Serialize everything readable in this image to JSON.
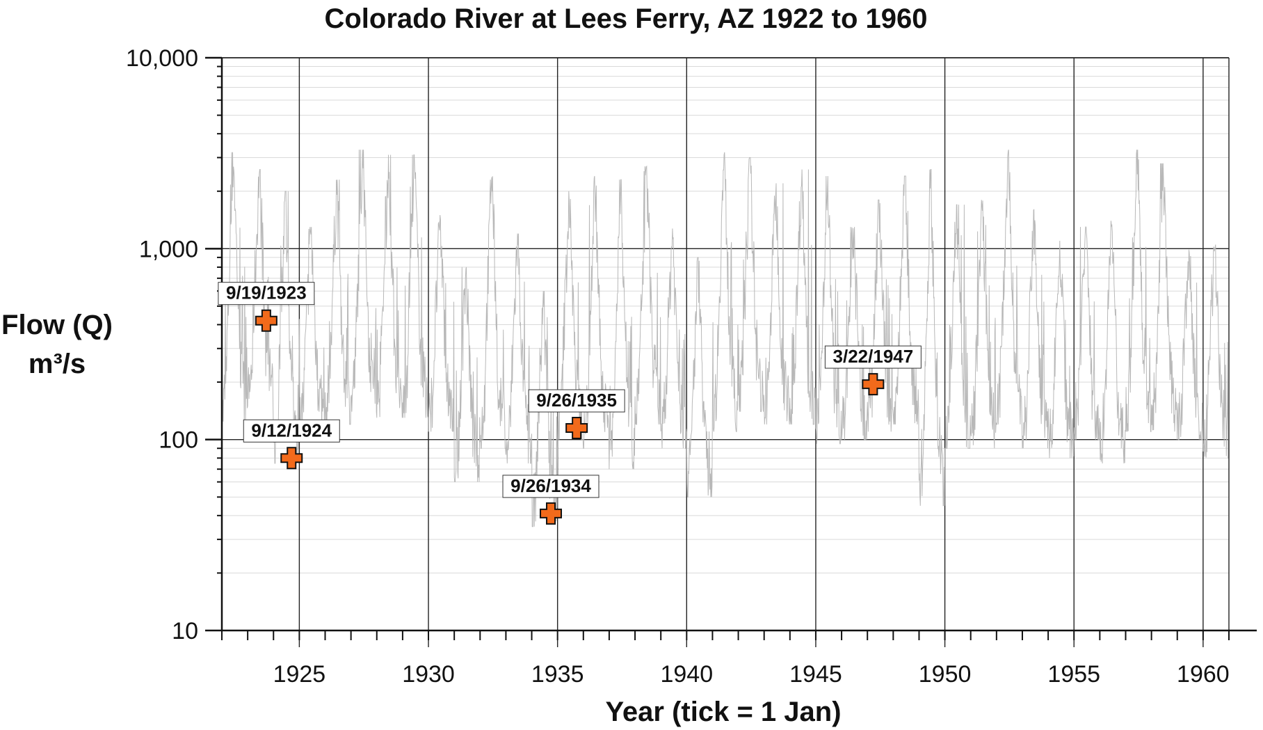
{
  "chart_data": {
    "type": "line",
    "title": "Colorado River at Lees Ferry, AZ 1922 to 1960",
    "xlabel": "Year (tick = 1 Jan)",
    "ylabel_line1": "Flow (Q)",
    "ylabel_line2": "m³/s",
    "y_scale": "log",
    "xlim": [
      1922,
      1961
    ],
    "ylim": [
      10,
      10000
    ],
    "x_ticks": [
      {
        "value": 1925,
        "label": "1925"
      },
      {
        "value": 1930,
        "label": "1930"
      },
      {
        "value": 1935,
        "label": "1935"
      },
      {
        "value": 1940,
        "label": "1940"
      },
      {
        "value": 1945,
        "label": "1945"
      },
      {
        "value": 1950,
        "label": "1950"
      },
      {
        "value": 1955,
        "label": "1955"
      },
      {
        "value": 1960,
        "label": "1960"
      }
    ],
    "y_ticks": [
      {
        "value": 10,
        "label": "10"
      },
      {
        "value": 100,
        "label": "100"
      },
      {
        "value": 1000,
        "label": "1,000"
      },
      {
        "value": 10000,
        "label": "10,000"
      }
    ],
    "grid": true,
    "series": [
      {
        "name": "daily flow",
        "color": "#b8b8b8",
        "annual_peaks": [
          {
            "year": 1922,
            "peak": 3200,
            "low": 120
          },
          {
            "year": 1923,
            "peak": 2600,
            "low": 150
          },
          {
            "year": 1924,
            "peak": 2000,
            "low": 75
          },
          {
            "year": 1925,
            "peak": 1300,
            "low": 110
          },
          {
            "year": 1926,
            "peak": 2300,
            "low": 120
          },
          {
            "year": 1927,
            "peak": 3300,
            "low": 140
          },
          {
            "year": 1928,
            "peak": 3100,
            "low": 130
          },
          {
            "year": 1929,
            "peak": 3100,
            "low": 130
          },
          {
            "year": 1930,
            "peak": 1500,
            "low": 110
          },
          {
            "year": 1931,
            "peak": 800,
            "low": 60
          },
          {
            "year": 1932,
            "peak": 2800,
            "low": 90
          },
          {
            "year": 1933,
            "peak": 1200,
            "low": 75
          },
          {
            "year": 1934,
            "peak": 600,
            "low": 35
          },
          {
            "year": 1935,
            "peak": 2000,
            "low": 100
          },
          {
            "year": 1936,
            "peak": 2400,
            "low": 90
          },
          {
            "year": 1937,
            "peak": 2300,
            "low": 70
          },
          {
            "year": 1938,
            "peak": 2700,
            "low": 120
          },
          {
            "year": 1939,
            "peak": 1300,
            "low": 90
          },
          {
            "year": 1940,
            "peak": 900,
            "low": 50
          },
          {
            "year": 1941,
            "peak": 3200,
            "low": 110
          },
          {
            "year": 1942,
            "peak": 3000,
            "low": 140
          },
          {
            "year": 1943,
            "peak": 2200,
            "low": 120
          },
          {
            "year": 1944,
            "peak": 2600,
            "low": 120
          },
          {
            "year": 1945,
            "peak": 2400,
            "low": 95
          },
          {
            "year": 1946,
            "peak": 1300,
            "low": 100
          },
          {
            "year": 1947,
            "peak": 1800,
            "low": 110
          },
          {
            "year": 1948,
            "peak": 2400,
            "low": 120
          },
          {
            "year": 1949,
            "peak": 2600,
            "low": 45
          },
          {
            "year": 1950,
            "peak": 1700,
            "low": 90
          },
          {
            "year": 1951,
            "peak": 1800,
            "low": 90
          },
          {
            "year": 1952,
            "peak": 3300,
            "low": 120
          },
          {
            "year": 1953,
            "peak": 1600,
            "low": 90
          },
          {
            "year": 1954,
            "peak": 1100,
            "low": 80
          },
          {
            "year": 1955,
            "peak": 1300,
            "low": 100
          },
          {
            "year": 1956,
            "peak": 1400,
            "low": 75
          },
          {
            "year": 1957,
            "peak": 3300,
            "low": 110
          },
          {
            "year": 1958,
            "peak": 2800,
            "low": 110
          },
          {
            "year": 1959,
            "peak": 1000,
            "low": 100
          },
          {
            "year": 1960,
            "peak": 1200,
            "low": 80
          }
        ]
      }
    ],
    "markers": {
      "color": "#f26a1b",
      "points": [
        {
          "label": "9/19/1923",
          "x": 1923.72,
          "y": 420
        },
        {
          "label": "9/12/1924",
          "x": 1924.7,
          "y": 80
        },
        {
          "label": "9/26/1934",
          "x": 1934.74,
          "y": 41
        },
        {
          "label": "9/26/1935",
          "x": 1935.74,
          "y": 115
        },
        {
          "label": "3/22/1947",
          "x": 1947.22,
          "y": 195
        }
      ]
    }
  }
}
